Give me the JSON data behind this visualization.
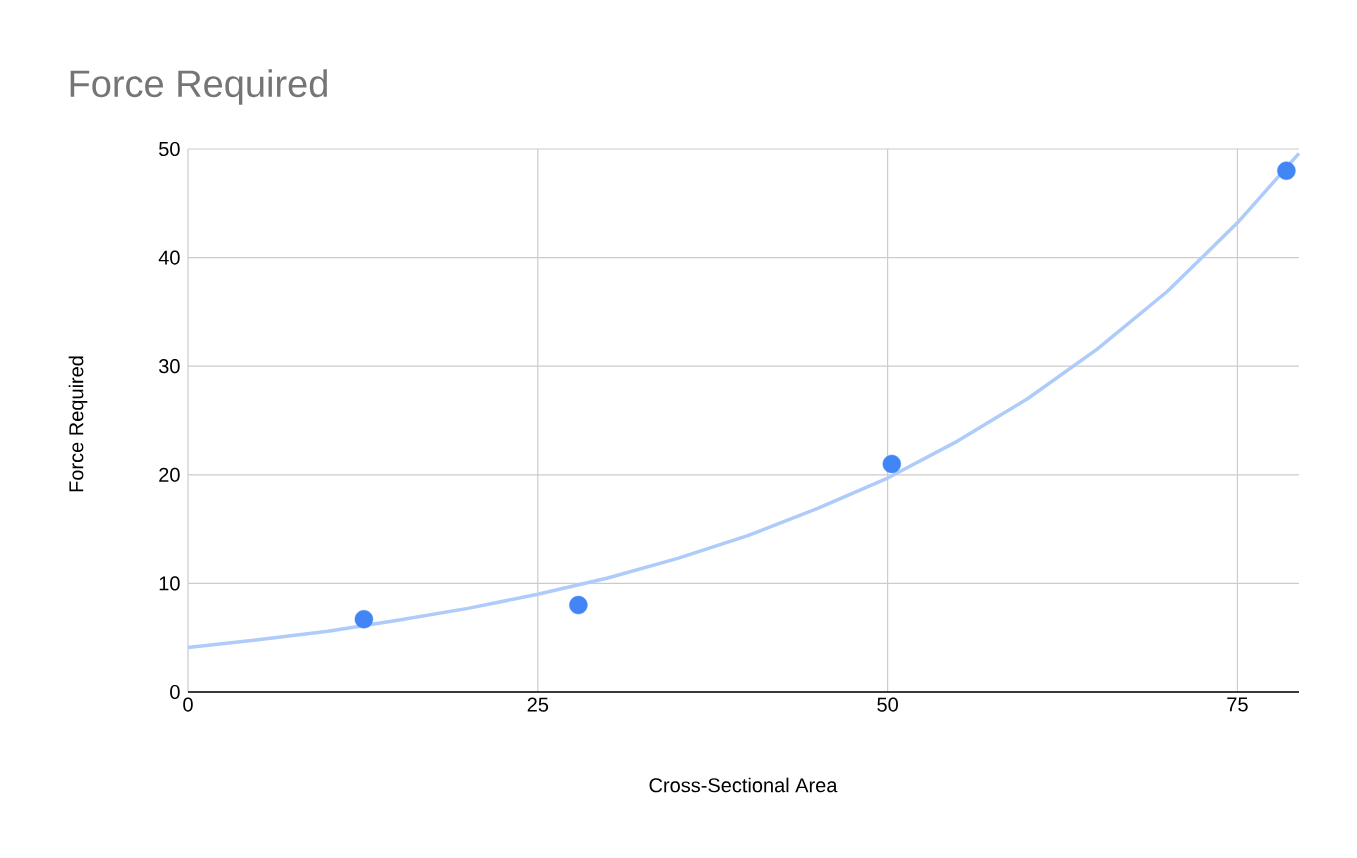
{
  "chart_data": {
    "type": "scatter",
    "title": "Force Required",
    "xlabel": "Cross-Sectional Area",
    "ylabel": "Force Required",
    "xlim": [
      0,
      79.4
    ],
    "ylim": [
      0,
      50
    ],
    "xticks": [
      0,
      25,
      50,
      75
    ],
    "yticks": [
      0,
      10,
      20,
      30,
      40,
      50
    ],
    "grid": true,
    "marker": "circle",
    "series": [
      {
        "type": "line",
        "color": "#aecbfa",
        "marker": "none",
        "x": [
          0,
          5,
          10,
          15,
          20,
          25,
          30,
          35,
          40,
          45,
          50,
          55,
          60,
          65,
          70,
          75,
          79.4
        ],
        "values": [
          4.1,
          4.8,
          5.6,
          6.6,
          7.7,
          9.0,
          10.5,
          12.3,
          14.4,
          16.9,
          19.7,
          23.1,
          27.0,
          31.6,
          36.9,
          43.2,
          49.6
        ]
      },
      {
        "color": "#4285f4",
        "x": [
          12.57,
          27.9,
          50.3,
          78.5
        ],
        "values": [
          6.7,
          8,
          21,
          48
        ]
      }
    ]
  }
}
